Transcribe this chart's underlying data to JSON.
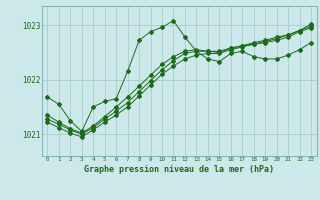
{
  "title": "Graphe pression niveau de la mer (hPa)",
  "background_color": "#cce8ea",
  "grid_color": "#aacccc",
  "line_color": "#1a6b1a",
  "border_color": "#669999",
  "text_color": "#1a6b1a",
  "x_ticks": [
    0,
    1,
    2,
    3,
    4,
    5,
    6,
    7,
    8,
    9,
    10,
    11,
    12,
    13,
    14,
    15,
    16,
    17,
    18,
    19,
    20,
    21,
    22,
    23
  ],
  "y_ticks": [
    1021,
    1022,
    1023
  ],
  "ylim": [
    1020.6,
    1023.35
  ],
  "xlim": [
    -0.5,
    23.5
  ],
  "series": [
    [
      1021.68,
      1021.55,
      1021.25,
      1021.05,
      1021.5,
      1021.6,
      1021.65,
      1022.15,
      1022.72,
      1022.88,
      1022.96,
      1023.08,
      1022.78,
      1022.52,
      1022.38,
      1022.33,
      1022.48,
      1022.52,
      1022.42,
      1022.38,
      1022.38,
      1022.45,
      1022.55,
      1022.68
    ],
    [
      1021.35,
      1021.22,
      1021.1,
      1021.02,
      1021.15,
      1021.32,
      1021.5,
      1021.68,
      1021.88,
      1022.08,
      1022.28,
      1022.42,
      1022.52,
      1022.55,
      1022.52,
      1022.5,
      1022.58,
      1022.62,
      1022.65,
      1022.7,
      1022.75,
      1022.82,
      1022.9,
      1023.02
    ],
    [
      1021.28,
      1021.18,
      1021.08,
      1021.0,
      1021.12,
      1021.28,
      1021.42,
      1021.58,
      1021.78,
      1021.98,
      1022.18,
      1022.35,
      1022.48,
      1022.52,
      1022.52,
      1022.52,
      1022.58,
      1022.62,
      1022.68,
      1022.72,
      1022.78,
      1022.82,
      1022.9,
      1022.98
    ],
    [
      1021.22,
      1021.12,
      1021.02,
      1020.95,
      1021.08,
      1021.22,
      1021.35,
      1021.5,
      1021.7,
      1021.9,
      1022.1,
      1022.25,
      1022.38,
      1022.45,
      1022.48,
      1022.48,
      1022.55,
      1022.6,
      1022.65,
      1022.68,
      1022.72,
      1022.78,
      1022.88,
      1022.95
    ]
  ]
}
